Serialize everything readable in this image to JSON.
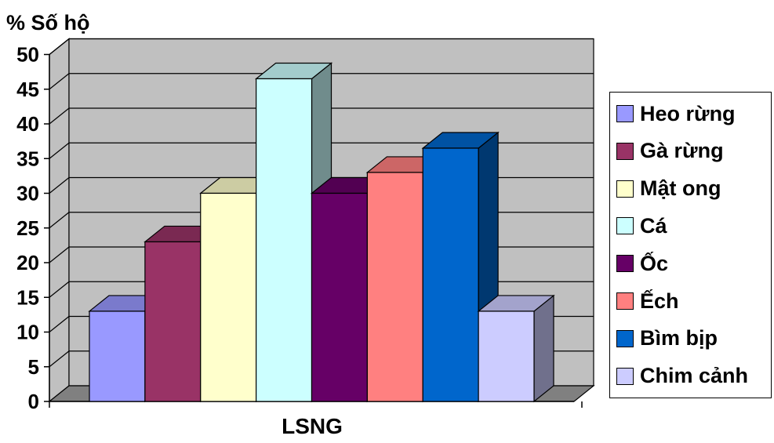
{
  "chart_data": {
    "type": "bar",
    "style": "3d-clustered-column",
    "ylabel": "% Số hộ",
    "xlabel": "LSNG",
    "categories": [
      "LSNG"
    ],
    "ylim": [
      0,
      50
    ],
    "y_ticks": [
      "0",
      "5",
      "10",
      "15",
      "20",
      "25",
      "30",
      "35",
      "40",
      "45",
      "50"
    ],
    "grid": true,
    "legend_position": "right",
    "series": [
      {
        "name": "Heo rừng",
        "values": [
          13
        ],
        "color": "#9999FF"
      },
      {
        "name": "Gà rừng",
        "values": [
          23
        ],
        "color": "#993366"
      },
      {
        "name": "Mật ong",
        "values": [
          30
        ],
        "color": "#FFFFCC"
      },
      {
        "name": "Cá",
        "values": [
          46.5
        ],
        "color": "#CCFFFF"
      },
      {
        "name": "Ốc",
        "values": [
          30
        ],
        "color": "#660066"
      },
      {
        "name": "Ếch",
        "values": [
          33
        ],
        "color": "#FF8080"
      },
      {
        "name": "Bìm bịp",
        "values": [
          36.5
        ],
        "color": "#0066CC"
      },
      {
        "name": "Chim cảnh",
        "values": [
          13
        ],
        "color": "#CCCCFF"
      }
    ],
    "wall_color": "#C0C0C0",
    "floor_color": "#808080"
  }
}
